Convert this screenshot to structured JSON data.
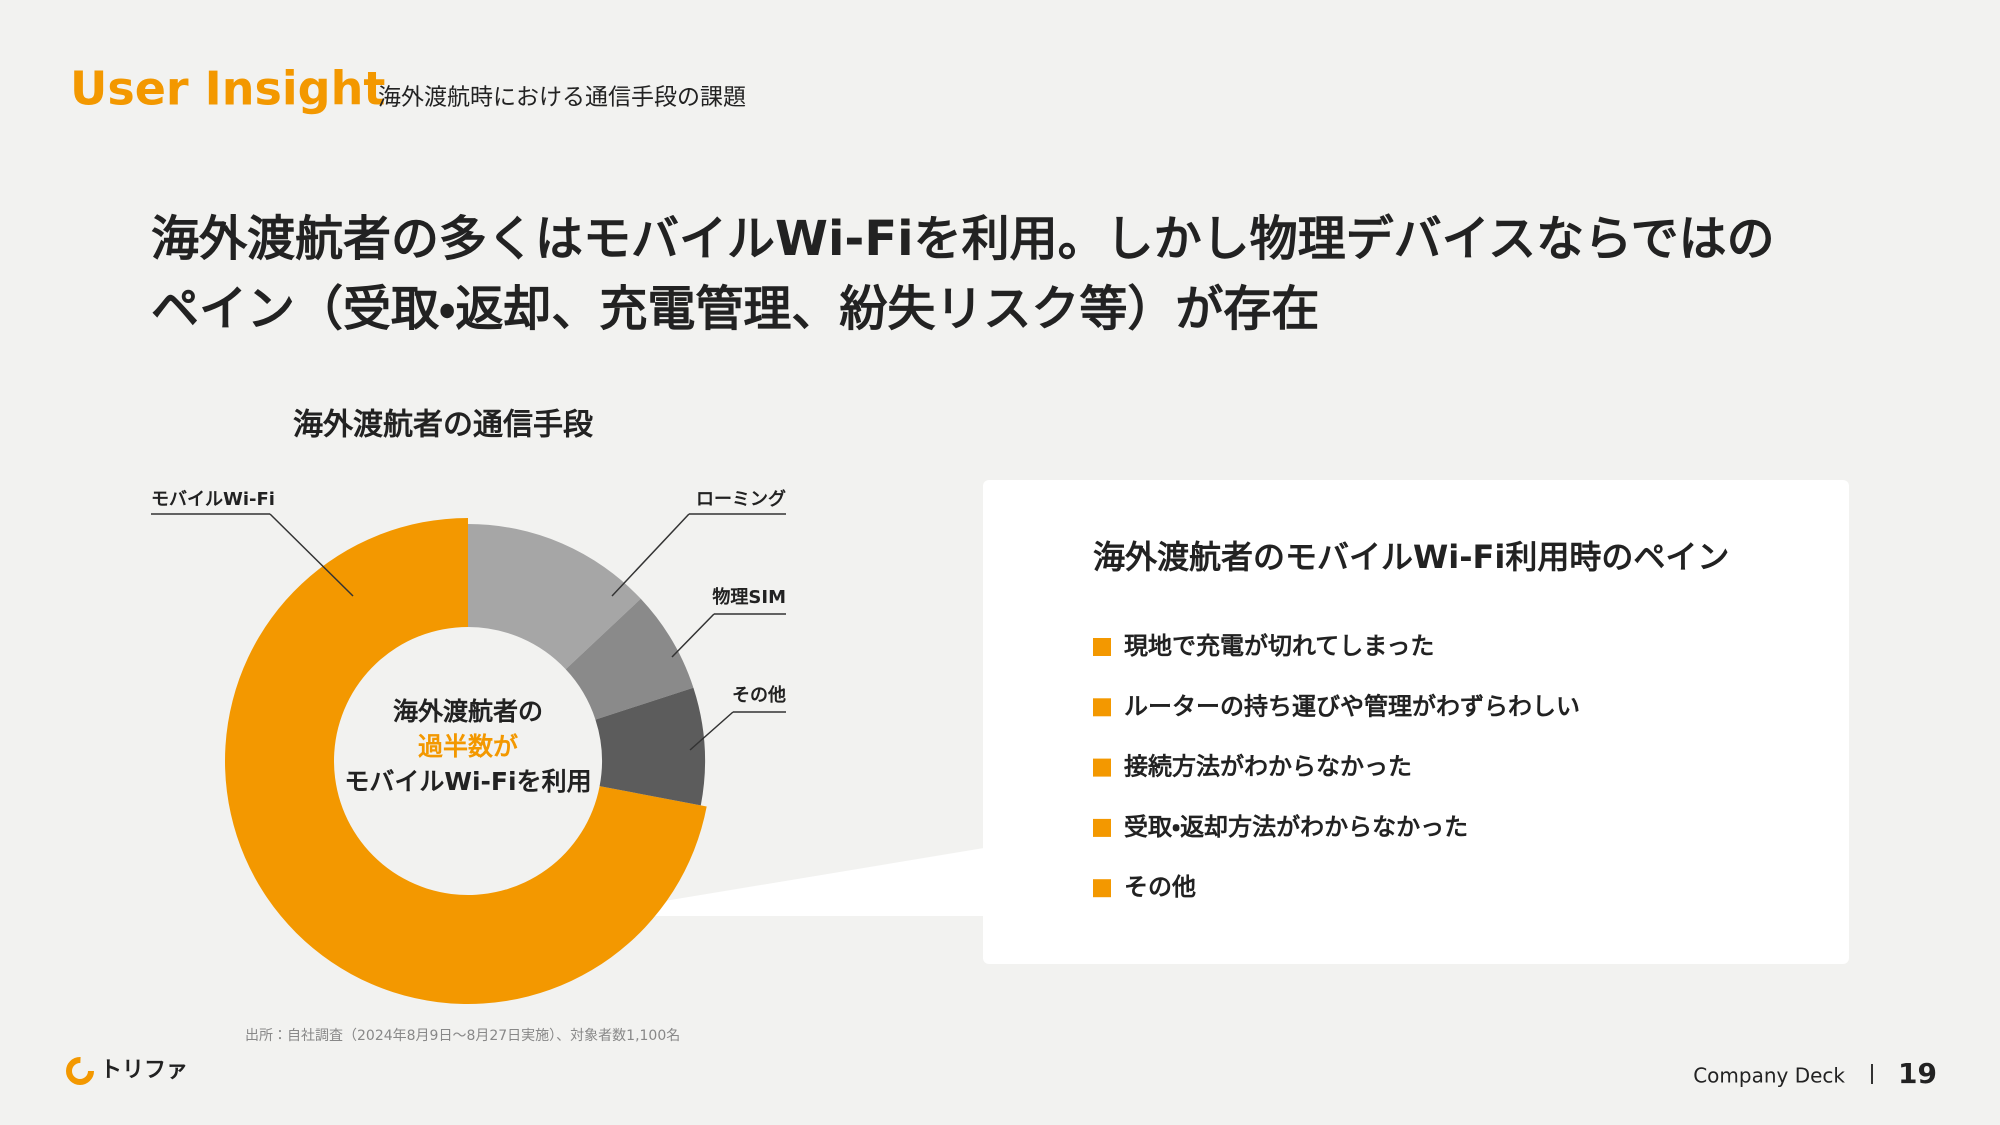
{
  "header": {
    "title": "User Insight",
    "subtitle": "海外渡航時における通信手段の課題"
  },
  "headline": [
    "海外渡航者の多くはモバイルWi-Fiを利用。しかし物理デバイスならではの",
    "ペイン（受取・返却、充電管理、紛失リスク等）が存在"
  ],
  "chart_data": {
    "type": "donut",
    "title": "海外渡航者の通信手段",
    "categories": [
      "モバイルWi-Fi",
      "ローミング",
      "物理SIM",
      "その他"
    ],
    "values": [
      72,
      13,
      7,
      8
    ],
    "colors": [
      "#f39800",
      "#a6a6a6",
      "#8a8a8a",
      "#5c5c5c"
    ],
    "center_text": [
      "海外渡航者の",
      "過半数が",
      "モバイルWi-Fiを利用"
    ],
    "highlight_color": "#f39800"
  },
  "panel": {
    "title": "海外渡航者のモバイルWi-Fi利用時のペイン",
    "items": [
      "現地で充電が切れてしまった",
      "ルーターの持ち運びや管理がわずらわしい",
      "接続方法がわからなかった",
      "受取・返却方法がわからなかった",
      "その他"
    ]
  },
  "footer": {
    "source": "出所：自社調査（2024年8月9日〜8月27日実施）、対象者数1,100名",
    "logo": "トリファ",
    "deck": "Company Deck",
    "page": "19"
  }
}
